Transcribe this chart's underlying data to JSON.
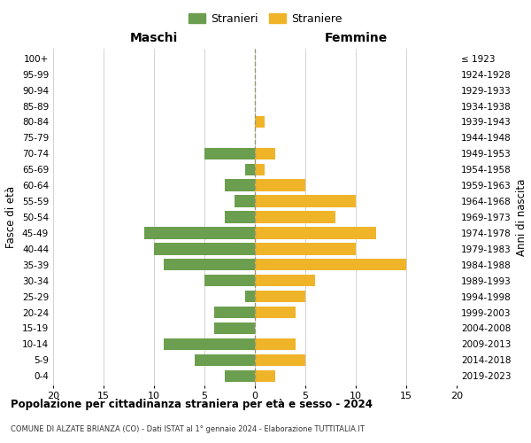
{
  "age_groups": [
    "0-4",
    "5-9",
    "10-14",
    "15-19",
    "20-24",
    "25-29",
    "30-34",
    "35-39",
    "40-44",
    "45-49",
    "50-54",
    "55-59",
    "60-64",
    "65-69",
    "70-74",
    "75-79",
    "80-84",
    "85-89",
    "90-94",
    "95-99",
    "100+"
  ],
  "birth_years": [
    "2019-2023",
    "2014-2018",
    "2009-2013",
    "2004-2008",
    "1999-2003",
    "1994-1998",
    "1989-1993",
    "1984-1988",
    "1979-1983",
    "1974-1978",
    "1969-1973",
    "1964-1968",
    "1959-1963",
    "1954-1958",
    "1949-1953",
    "1944-1948",
    "1939-1943",
    "1934-1938",
    "1929-1933",
    "1924-1928",
    "≤ 1923"
  ],
  "maschi": [
    3,
    6,
    9,
    4,
    4,
    1,
    5,
    9,
    10,
    11,
    3,
    2,
    3,
    1,
    5,
    0,
    0,
    0,
    0,
    0,
    0
  ],
  "femmine": [
    2,
    5,
    4,
    0,
    4,
    5,
    6,
    15,
    10,
    12,
    8,
    10,
    5,
    1,
    2,
    0,
    1,
    0,
    0,
    0,
    0
  ],
  "maschi_color": "#6b9e4e",
  "femmine_color": "#f0b429",
  "title": "Popolazione per cittadinanza straniera per età e sesso - 2024",
  "subtitle": "COMUNE DI ALZATE BRIANZA (CO) - Dati ISTAT al 1° gennaio 2024 - Elaborazione TUTTITALIA.IT",
  "legend_maschi": "Stranieri",
  "legend_femmine": "Straniere",
  "xlabel_left": "Maschi",
  "xlabel_right": "Femmine",
  "ylabel_left": "Fasce di età",
  "ylabel_right": "Anni di nascita",
  "xlim": 20,
  "xticklabels": [
    "20",
    "15",
    "10",
    "5",
    "0",
    "5",
    "10",
    "15",
    "20"
  ],
  "background_color": "#ffffff",
  "grid_color": "#cccccc"
}
